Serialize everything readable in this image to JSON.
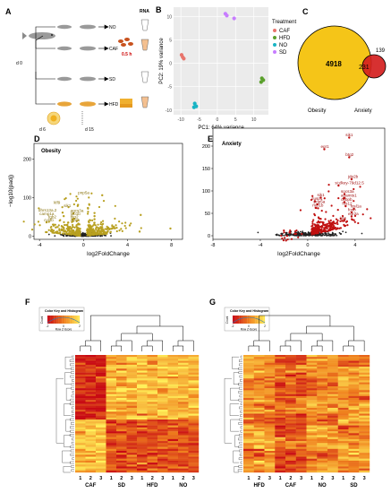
{
  "panels": {
    "a": "A",
    "b": "B",
    "c": "C",
    "d": "D",
    "e": "E",
    "f": "F",
    "g": "G"
  },
  "panel_a": {
    "rna_label": "RNA",
    "groups": [
      "NO",
      "CAF",
      "SD",
      "HFD"
    ],
    "caf_time": "0.5 h",
    "days": [
      "d 0",
      "d 6",
      "d 15"
    ]
  },
  "colors": {
    "CAF": "#e8746c",
    "HFD": "#5aa02c",
    "NO": "#19b4c4",
    "SD": "#c77cff",
    "volcano_d": "#b8a020",
    "volcano_e": "#c01010",
    "venn_obesity": "#f5c518",
    "venn_anxiety": "#d42020"
  },
  "chart_data": [
    {
      "id": "pca",
      "type": "scatter",
      "xlabel": "PC1: 64% variance",
      "ylabel": "PC2: 19% variance",
      "xlim": [
        -12,
        14
      ],
      "ylim": [
        -11,
        12
      ],
      "xticks": [
        -10,
        -5,
        0,
        5,
        10
      ],
      "yticks": [
        -10,
        -5,
        0,
        5,
        10
      ],
      "legend_title": "Treatment",
      "legend_position": "right",
      "series": [
        {
          "name": "CAF",
          "points": [
            [
              -9.8,
              1.8
            ],
            [
              -9.5,
              1.3
            ],
            [
              -9.2,
              1.0
            ]
          ]
        },
        {
          "name": "HFD",
          "points": [
            [
              12.2,
              -3.2
            ],
            [
              12.6,
              -3.6
            ],
            [
              12.0,
              -4.0
            ]
          ]
        },
        {
          "name": "NO",
          "points": [
            [
              -6.2,
              -8.6
            ],
            [
              -5.8,
              -9.2
            ],
            [
              -6.4,
              -9.4
            ]
          ]
        },
        {
          "name": "SD",
          "points": [
            [
              2.2,
              10.6
            ],
            [
              2.6,
              10.2
            ],
            [
              4.6,
              9.6
            ]
          ]
        }
      ]
    },
    {
      "id": "venn",
      "type": "venn",
      "sets": [
        {
          "name": "Obesity",
          "only": "4918"
        },
        {
          "name": "Anxiety",
          "only": "139"
        }
      ],
      "overlap": "231"
    },
    {
      "id": "volcano_obesity",
      "type": "scatter",
      "title": "Obesity",
      "xlabel": "log2FoldChange",
      "ylabel": "−log10(padj)",
      "xlim": [
        -4.5,
        9
      ],
      "ylim": [
        -8,
        240
      ],
      "xticks": [
        -4,
        0,
        4,
        8
      ],
      "yticks": [
        0,
        100,
        200
      ],
      "labels": [
        {
          "text": "pnp5a",
          "x": -0.5,
          "y": 109
        },
        {
          "text": "klf9",
          "x": -2.7,
          "y": 84
        },
        {
          "text": "sik1",
          "x": -1.8,
          "y": 76
        },
        {
          "text": "dhrs13a.2",
          "x": -4.1,
          "y": 64
        },
        {
          "text": "agcs3a",
          "x": -1.2,
          "y": 63
        },
        {
          "text": "camp1a",
          "x": -4.0,
          "y": 55
        },
        {
          "text": "lpb1b",
          "x": -1.2,
          "y": 55
        },
        {
          "text": "fgb2",
          "x": -3.2,
          "y": 46
        },
        {
          "text": "btg2",
          "x": -1.2,
          "y": 47
        },
        {
          "text": "cyldb",
          "x": -3.6,
          "y": 38
        },
        {
          "text": "crem",
          "x": -1.2,
          "y": 38
        }
      ]
    },
    {
      "id": "volcano_anxiety",
      "type": "scatter",
      "title": "Anxiety",
      "xlabel": "log2FoldChange",
      "ylabel": "",
      "xlim": [
        -8,
        6.5
      ],
      "ylim": [
        -8,
        240
      ],
      "xticks": [
        -8,
        -4,
        0,
        4
      ],
      "yticks": [
        0,
        50,
        100,
        150,
        200
      ],
      "labels": [
        {
          "text": "sik1",
          "x": 3.2,
          "y": 222
        },
        {
          "text": "egr1",
          "x": 1.1,
          "y": 196
        },
        {
          "text": "btg2",
          "x": 3.2,
          "y": 178
        },
        {
          "text": "jdp2b",
          "x": 3.4,
          "y": 129
        },
        {
          "text": "si:dkey-79d12.5",
          "x": 2.3,
          "y": 115
        },
        {
          "text": "socs3a",
          "x": 2.8,
          "y": 96
        },
        {
          "text": "sik1",
          "x": 0.8,
          "y": 88
        },
        {
          "text": "adamts1",
          "x": 2.8,
          "y": 87
        },
        {
          "text": "dusp1",
          "x": 0.3,
          "y": 80
        },
        {
          "text": "cebpb",
          "x": 2.8,
          "y": 78
        },
        {
          "text": "pnp5a",
          "x": 0.5,
          "y": 73
        },
        {
          "text": "fos12",
          "x": 2.9,
          "y": 69
        },
        {
          "text": "mcl1b",
          "x": 0.4,
          "y": 65
        },
        {
          "text": "fosl1a",
          "x": 3.6,
          "y": 63
        },
        {
          "text": "fosb",
          "x": 3.4,
          "y": 55
        },
        {
          "text": "egr2a",
          "x": 3.4,
          "y": 46
        },
        {
          "text": "klf4",
          "x": 2.7,
          "y": 36
        }
      ]
    },
    {
      "id": "heatmap_f",
      "type": "heatmap",
      "color_key_title": "Color Key and Histogram",
      "color_key_xlabel": "Row Z-Score",
      "color_key_ylabel": "Count",
      "color_key_ticks": [
        "-2",
        "0",
        "2"
      ],
      "groups": [
        "CAF",
        "SD",
        "HFD",
        "NO"
      ],
      "replicates": [
        "1",
        "2",
        "3"
      ]
    },
    {
      "id": "heatmap_g",
      "type": "heatmap",
      "color_key_title": "Color Key and Histogram",
      "color_key_xlabel": "Row Z-Score",
      "color_key_ylabel": "Count",
      "color_key_ticks": [
        "-2",
        "0",
        "2"
      ],
      "groups": [
        "HFD",
        "CAF",
        "NO",
        "SD"
      ],
      "replicates": [
        "1",
        "2",
        "3"
      ]
    }
  ]
}
